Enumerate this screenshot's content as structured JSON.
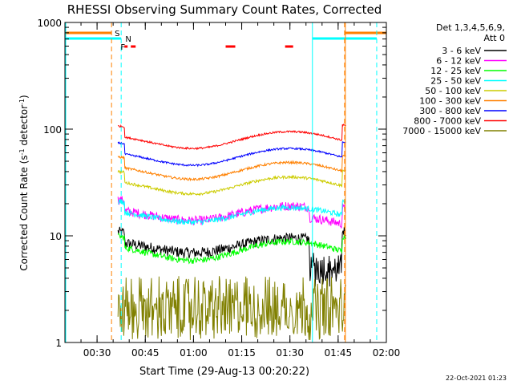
{
  "chart_data": {
    "type": "line",
    "title": "RHESSI Observing Summary Count Rates, Corrected",
    "xlabel": "Start Time (29-Aug-13 00:20:22)",
    "ylabel_main": "Corrected Count Rate (s",
    "ylabel_sup1": "-1",
    "ylabel_mid": " detector",
    "ylabel_sup2": "-1",
    "ylabel_end": ")",
    "yscale": "log",
    "ylim": [
      1,
      1000
    ],
    "xlim_min": [
      20,
      120
    ],
    "x_ticks": [
      {
        "min": 30,
        "label": "00:30"
      },
      {
        "min": 45,
        "label": "00:45"
      },
      {
        "min": 60,
        "label": "01:00"
      },
      {
        "min": 75,
        "label": "01:15"
      },
      {
        "min": 90,
        "label": "01:30"
      },
      {
        "min": 105,
        "label": "01:45"
      },
      {
        "min": 120,
        "label": "02:00"
      }
    ],
    "y_ticks": [
      {
        "v": 1,
        "label": "1"
      },
      {
        "v": 10,
        "label": "10"
      },
      {
        "v": 100,
        "label": "100"
      },
      {
        "v": 1000,
        "label": "1000"
      }
    ],
    "legend_header": [
      "Det 1,3,4,5,6,9,",
      "Att 0"
    ],
    "legend_position": "right",
    "series": [
      {
        "name": "3 - 6 keV",
        "color": "#000000",
        "base": 7.5,
        "amp": 0.12,
        "noise": 0.12
      },
      {
        "name": "6 - 12 keV",
        "color": "#ff00ff",
        "base": 15,
        "amp": 0.12,
        "noise": 0.1
      },
      {
        "name": "12 - 25 keV",
        "color": "#00ff00",
        "base": 6.5,
        "amp": 0.16,
        "noise": 0.07
      },
      {
        "name": "25 - 50 keV",
        "color": "#00ffff",
        "base": 14.5,
        "amp": 0.12,
        "noise": 0.06
      },
      {
        "name": "50 - 100 keV",
        "color": "#cccc00",
        "base": 27,
        "amp": 0.14,
        "noise": 0.03
      },
      {
        "name": "100 - 300 keV",
        "color": "#ff8000",
        "base": 37,
        "amp": 0.14,
        "noise": 0.025
      },
      {
        "name": "300 - 800 keV",
        "color": "#0000ff",
        "base": 50,
        "amp": 0.14,
        "noise": 0.02
      },
      {
        "name": "800 - 7000 keV",
        "color": "#ff0000",
        "base": 72,
        "amp": 0.14,
        "noise": 0.02
      },
      {
        "name": "7000 - 15000 keV",
        "color": "#808000",
        "base": 2.3,
        "amp": 0.0,
        "noise": 0.25
      }
    ],
    "data_start_min": 36.5,
    "data_end_min": 107.5,
    "flags": {
      "saa_label": "S",
      "night_label": "N",
      "flare_label": "F",
      "saa_color": "#ff8000",
      "night_color": "#00ffff",
      "flare_color": "#ff0000",
      "saa_intervals_min": [
        [
          20,
          34.5
        ],
        [
          107,
          120
        ]
      ],
      "night_intervals_min": [
        [
          20,
          37.5
        ],
        [
          97,
          117
        ]
      ],
      "flare_marks_min": [
        [
          38.5,
          39.5
        ],
        [
          40.5,
          42
        ],
        [
          70,
          73
        ],
        [
          88.5,
          91
        ]
      ]
    }
  },
  "footer_date": "22-Oct-2021 01:23"
}
